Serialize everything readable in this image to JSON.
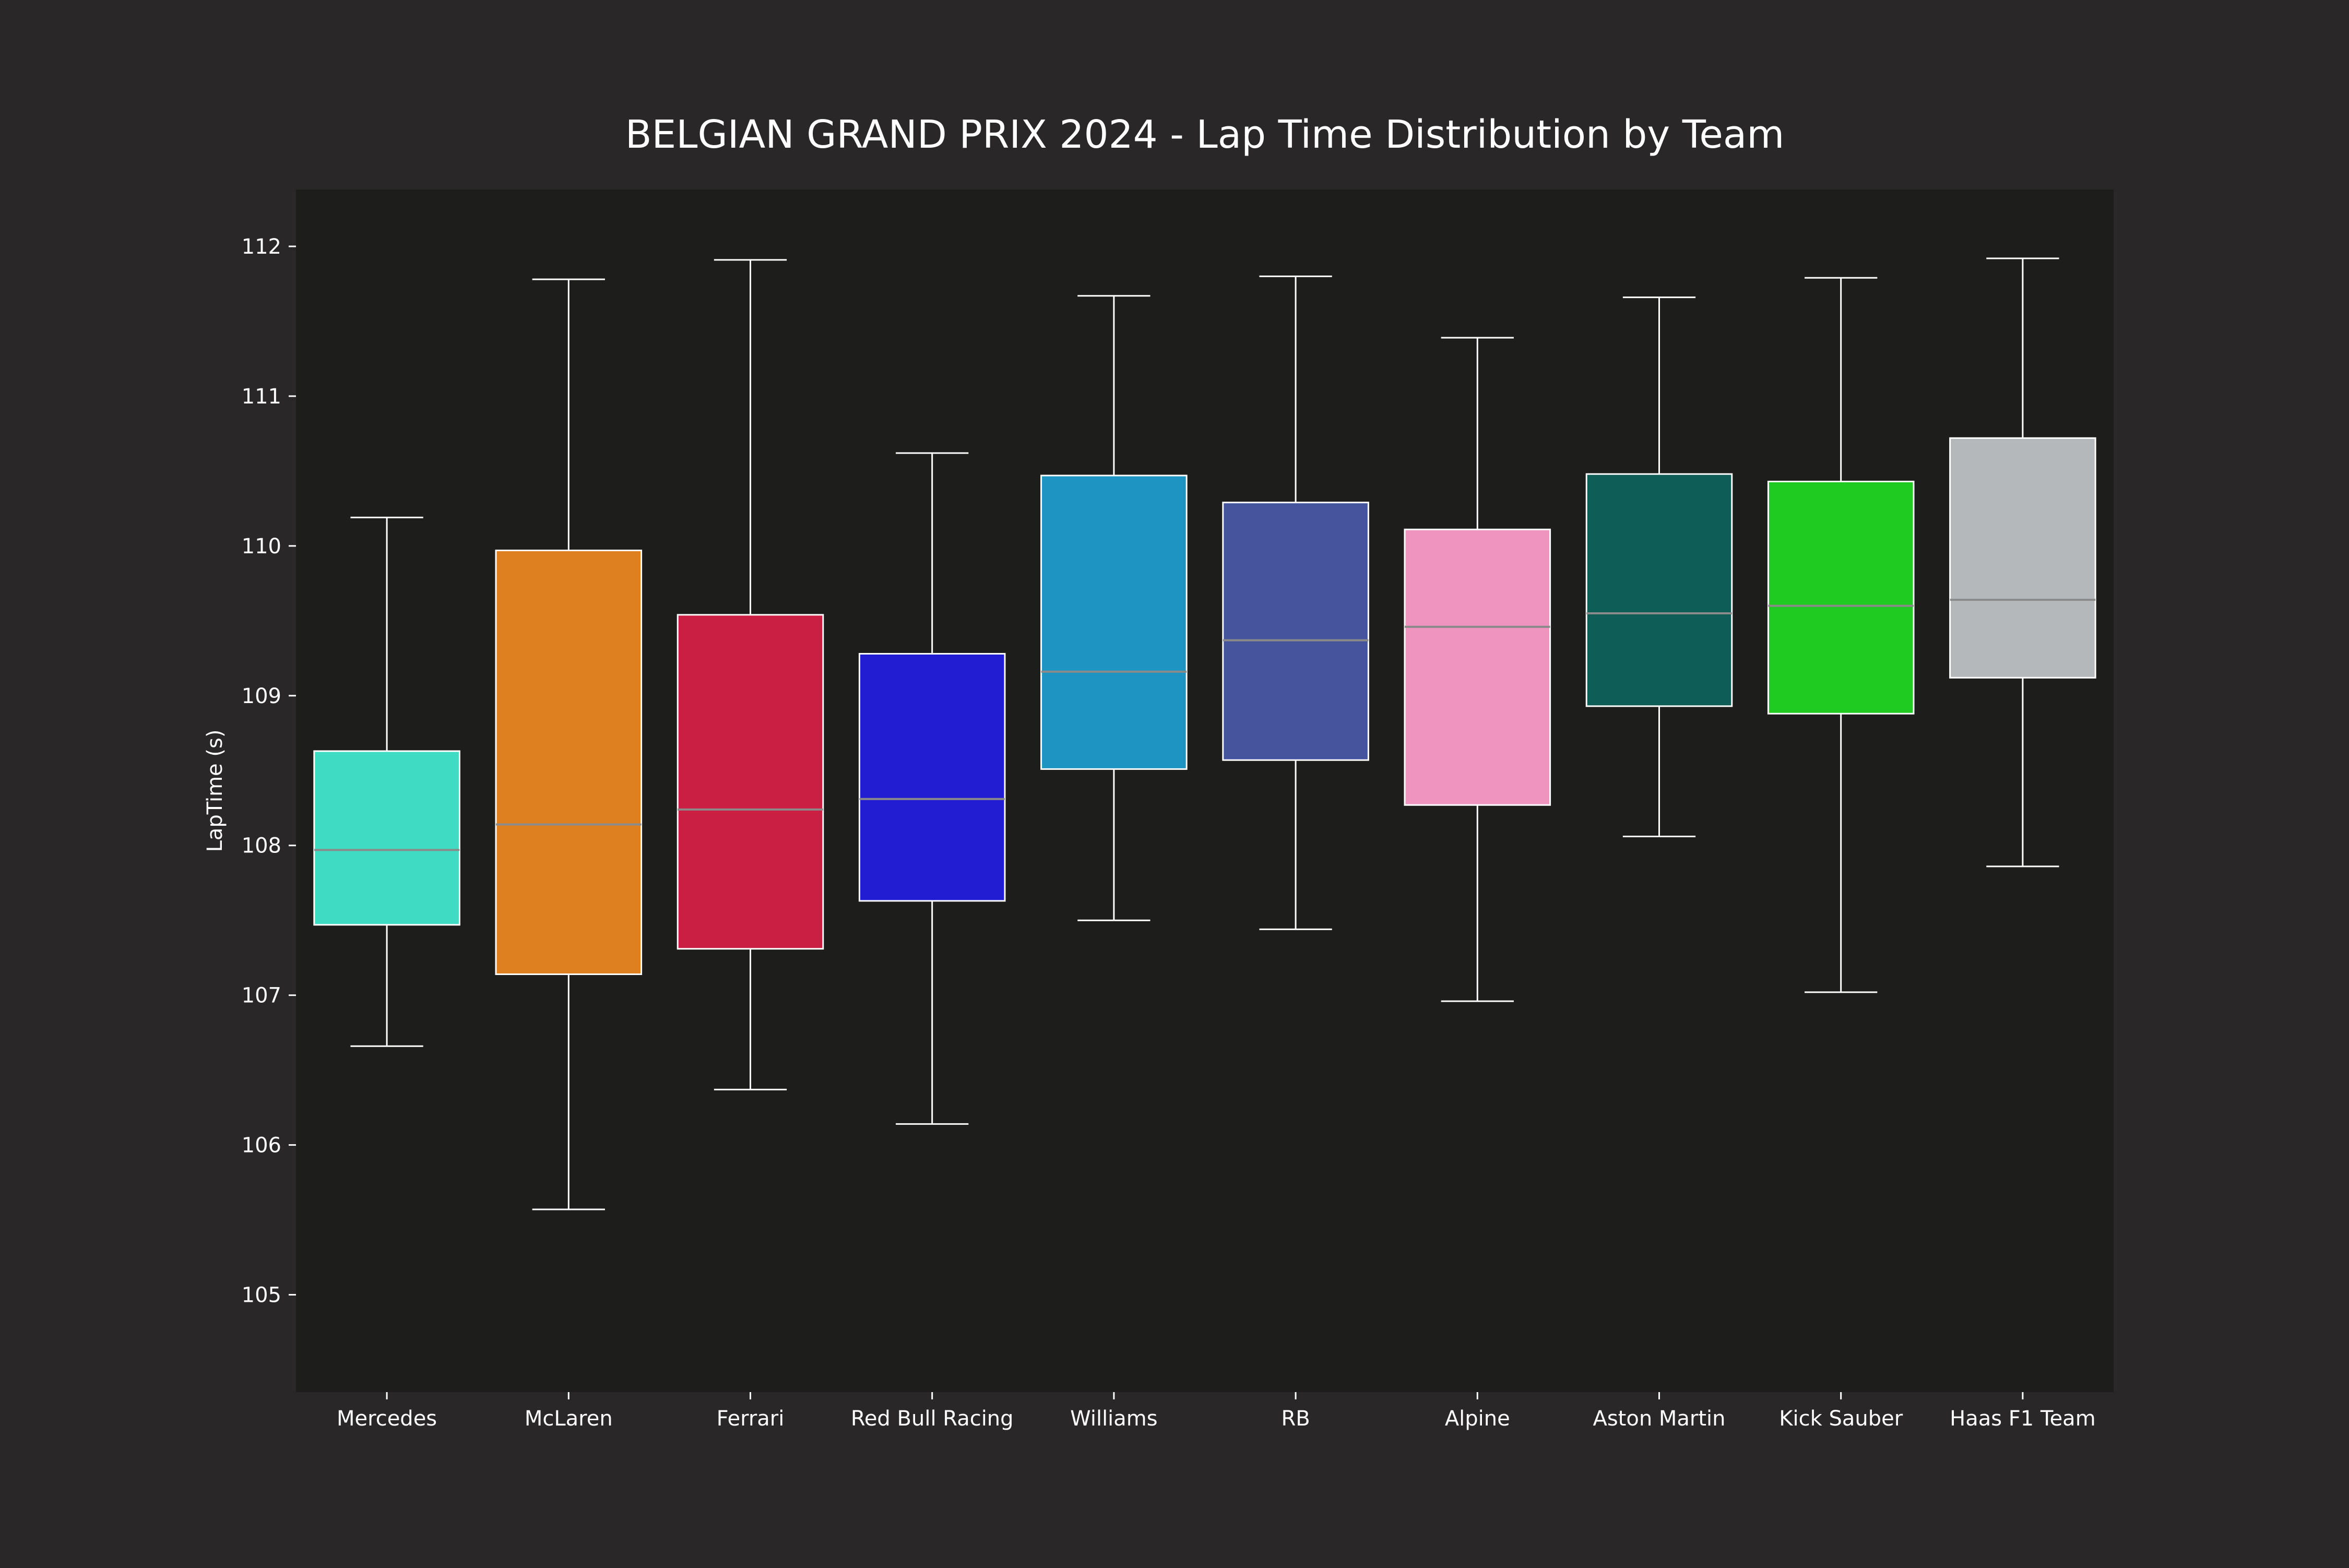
{
  "chart_data": {
    "type": "box",
    "title": "BELGIAN GRAND PRIX 2024 - Lap Time Distribution by Team",
    "xlabel": "",
    "ylabel": "LapTime (s)",
    "ylim": [
      104.35,
      112.38
    ],
    "yticks": [
      105,
      106,
      107,
      108,
      109,
      110,
      111,
      112
    ],
    "grid": false,
    "categories": [
      "Mercedes",
      "McLaren",
      "Ferrari",
      "Red Bull Racing",
      "Williams",
      "RB",
      "Alpine",
      "Aston Martin",
      "Kick Sauber",
      "Haas F1 Team"
    ],
    "boxes": [
      {
        "team": "Mercedes",
        "color": "#40DBC3",
        "whisker_low": 106.66,
        "q1": 107.47,
        "median": 107.97,
        "q3": 108.63,
        "whisker_high": 110.19
      },
      {
        "team": "McLaren",
        "color": "#DE8020",
        "whisker_low": 105.57,
        "q1": 107.14,
        "median": 108.14,
        "q3": 109.97,
        "whisker_high": 111.78
      },
      {
        "team": "Ferrari",
        "color": "#CA1E43",
        "whisker_low": 106.37,
        "q1": 107.31,
        "median": 108.24,
        "q3": 109.54,
        "whisker_high": 111.91
      },
      {
        "team": "Red Bull Racing",
        "color": "#221CD2",
        "whisker_low": 106.14,
        "q1": 107.63,
        "median": 108.31,
        "q3": 109.28,
        "whisker_high": 110.62
      },
      {
        "team": "Williams",
        "color": "#1E94C3",
        "whisker_low": 107.5,
        "q1": 108.51,
        "median": 109.16,
        "q3": 110.47,
        "whisker_high": 111.67
      },
      {
        "team": "RB",
        "color": "#44559D",
        "whisker_low": 107.44,
        "q1": 108.57,
        "median": 109.37,
        "q3": 110.29,
        "whisker_high": 111.8
      },
      {
        "team": "Alpine",
        "color": "#EE94BE",
        "whisker_low": 106.96,
        "q1": 108.27,
        "median": 109.46,
        "q3": 110.11,
        "whisker_high": 111.39
      },
      {
        "team": "Aston Martin",
        "color": "#0E5D57",
        "whisker_low": 108.06,
        "q1": 108.93,
        "median": 109.55,
        "q3": 110.48,
        "whisker_high": 111.66
      },
      {
        "team": "Kick Sauber",
        "color": "#1FCB20",
        "whisker_low": 107.02,
        "q1": 108.88,
        "median": 109.6,
        "q3": 110.43,
        "whisker_high": 111.79
      },
      {
        "team": "Haas F1 Team",
        "color": "#B5B8BA",
        "whisker_low": 107.86,
        "q1": 109.12,
        "median": 109.64,
        "q3": 110.72,
        "whisker_high": 111.92
      }
    ]
  }
}
